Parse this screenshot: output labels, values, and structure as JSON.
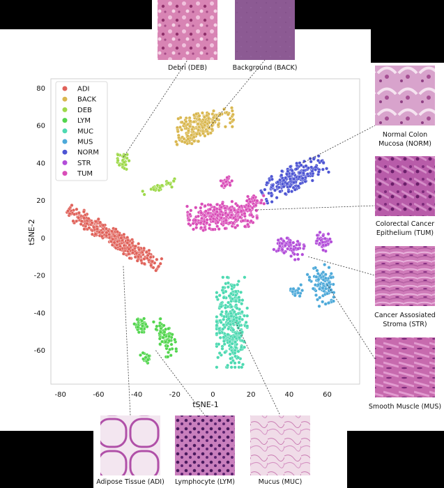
{
  "chart_data": {
    "type": "scatter",
    "title": "",
    "xlabel": "tSNE-1",
    "ylabel": "tSNE-2",
    "xlim": [
      -85,
      77
    ],
    "ylim": [
      -78,
      85
    ],
    "xticks": [
      -80,
      -60,
      -40,
      -20,
      0,
      20,
      40,
      60
    ],
    "yticks": [
      -60,
      -40,
      -20,
      0,
      20,
      40,
      60,
      80
    ],
    "legend_position": "top-left",
    "series": [
      {
        "name": "ADI",
        "color": "#e0625a",
        "clusters": [
          {
            "cx": -52,
            "cy": 0,
            "rx": 28,
            "ry": 4.5,
            "angle": -33,
            "n": 420
          }
        ]
      },
      {
        "name": "BACK",
        "color": "#d9b74f",
        "clusters": [
          {
            "cx": -4,
            "cy": 62,
            "rx": 15,
            "ry": 5,
            "angle": 10,
            "n": 150
          },
          {
            "cx": -10,
            "cy": 55,
            "rx": 10,
            "ry": 4,
            "angle": 20,
            "n": 70
          }
        ]
      },
      {
        "name": "DEB",
        "color": "#9ed94a",
        "clusters": [
          {
            "cx": -47,
            "cy": 41,
            "rx": 3,
            "ry": 4.5,
            "angle": 0,
            "n": 30
          },
          {
            "cx": -28,
            "cy": 27,
            "rx": 9,
            "ry": 2,
            "angle": 20,
            "n": 30
          }
        ]
      },
      {
        "name": "LYM",
        "color": "#52d54d",
        "clusters": [
          {
            "cx": -38,
            "cy": -47,
            "rx": 5,
            "ry": 4,
            "angle": 0,
            "n": 40
          },
          {
            "cx": -25,
            "cy": -53,
            "rx": 4,
            "ry": 10,
            "angle": 25,
            "n": 80
          },
          {
            "cx": -35,
            "cy": -64,
            "rx": 3,
            "ry": 3,
            "angle": 0,
            "n": 20
          }
        ]
      },
      {
        "name": "MUC",
        "color": "#4dd9b1",
        "clusters": [
          {
            "cx": 10,
            "cy": -45,
            "rx": 8,
            "ry": 24,
            "angle": 0,
            "n": 340
          }
        ]
      },
      {
        "name": "MUS",
        "color": "#4da9d9",
        "clusters": [
          {
            "cx": 58,
            "cy": -25,
            "rx": 6,
            "ry": 10,
            "angle": 20,
            "n": 100
          },
          {
            "cx": 44,
            "cy": -28,
            "rx": 4,
            "ry": 3,
            "angle": 0,
            "n": 20
          }
        ]
      },
      {
        "name": "NORM",
        "color": "#4d55d3",
        "clusters": [
          {
            "cx": 42,
            "cy": 32,
            "rx": 18,
            "ry": 6,
            "angle": 28,
            "n": 240
          }
        ]
      },
      {
        "name": "STR",
        "color": "#b24dd9",
        "clusters": [
          {
            "cx": 40,
            "cy": -5,
            "rx": 8,
            "ry": 5,
            "angle": -30,
            "n": 80
          },
          {
            "cx": 58,
            "cy": -2,
            "rx": 4,
            "ry": 5,
            "angle": 0,
            "n": 40
          }
        ]
      },
      {
        "name": "TUM",
        "color": "#d94db8",
        "clusters": [
          {
            "cx": 5,
            "cy": 12,
            "rx": 18,
            "ry": 7,
            "angle": 5,
            "n": 330
          },
          {
            "cx": 7,
            "cy": 30,
            "rx": 3,
            "ry": 3,
            "angle": 0,
            "n": 25
          },
          {
            "cx": 22,
            "cy": 20,
            "rx": 5,
            "ry": 3,
            "angle": 10,
            "n": 30
          }
        ]
      }
    ]
  },
  "tiles": [
    {
      "id": "deb",
      "label": "Debri (DEB)",
      "base": "#d884b4",
      "dot": "#8e2f6a",
      "target": [
        -47,
        43
      ]
    },
    {
      "id": "back",
      "label": "Background (BACK)",
      "base": "#8c5a93",
      "dot": "#6e3e78",
      "target": [
        -2,
        59
      ]
    },
    {
      "id": "norm",
      "label_lines": [
        "Normal Colon",
        "Mucosa (NORM)"
      ],
      "base": "#d8a3cc",
      "dot": "#a54e93",
      "target": [
        47,
        40
      ]
    },
    {
      "id": "tum",
      "label_lines": [
        "Colorectal Cancer",
        "Epithelium (TUM)"
      ],
      "base": "#b85ca9",
      "dot": "#6a1f6a",
      "target": [
        22,
        15
      ]
    },
    {
      "id": "str",
      "label_lines": [
        "Cancer Assosiated",
        "Stroma (STR)"
      ],
      "base": "#cf7bb9",
      "dot": "#872f84",
      "target": [
        50,
        -10
      ]
    },
    {
      "id": "mus",
      "label": "Smooth Muscle (MUS)",
      "base": "#c76aae",
      "dot": "#7b2a7a",
      "target": [
        60,
        -25
      ]
    },
    {
      "id": "adi",
      "label": "Adipose Tissue (ADI)",
      "base": "#f3e6f0",
      "dot": "#b050a8",
      "target": [
        -47,
        -15
      ]
    },
    {
      "id": "lym",
      "label": "Lymphocyte (LYM)",
      "base": "#c97fbd",
      "dot": "#4a1a5e",
      "target": [
        -30,
        -60
      ]
    },
    {
      "id": "muc",
      "label": "Mucus (MUC)",
      "base": "#f0dce8",
      "dot": "#c97ab2",
      "target": [
        12,
        -45
      ]
    }
  ]
}
